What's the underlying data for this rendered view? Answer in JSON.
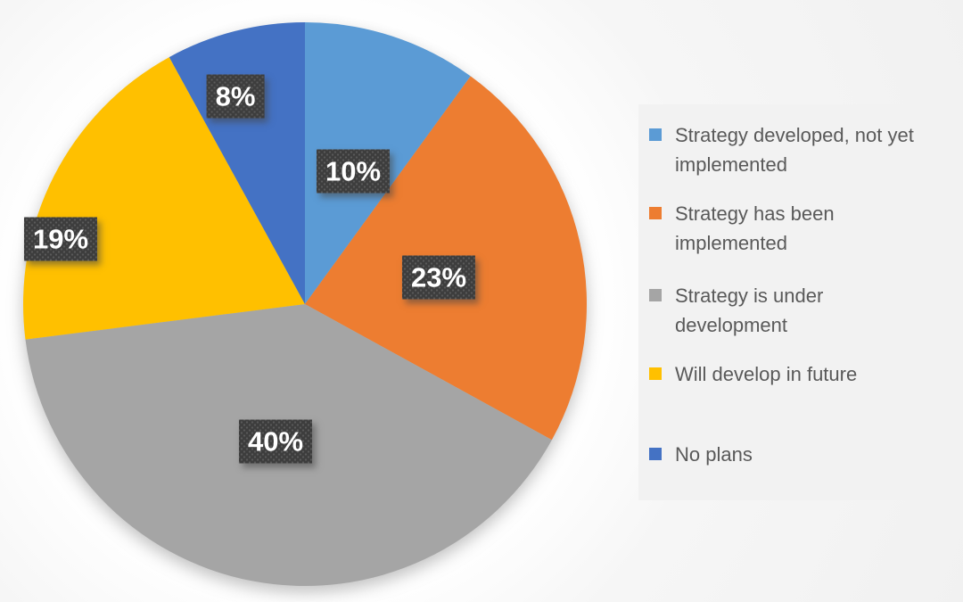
{
  "chart_data": {
    "type": "pie",
    "title": "",
    "categories": [
      "Strategy developed, not yet implemented",
      "Strategy has been implemented",
      "Strategy is under development",
      "Will develop in future",
      "No plans"
    ],
    "values": [
      10,
      23,
      40,
      19,
      8
    ],
    "data_labels": [
      "10%",
      "23%",
      "40%",
      "19%",
      "8%"
    ],
    "colors": [
      "#5B9BD5",
      "#ED7D31",
      "#A5A5A5",
      "#FFC000",
      "#4472C4"
    ],
    "start_angle": "12 o'clock",
    "direction": "clockwise",
    "legend_position": "right",
    "label_style": {
      "background": "#3D3D3D",
      "dot_color": "#5A5A5A",
      "text_color": "#FFFFFF",
      "shadow": "rgba(70,70,70,0.55)"
    }
  },
  "legend": {
    "background": "#F2F2F2",
    "text_color": "#595959",
    "items": [
      {
        "label": "Strategy developed, not yet\nimplemented",
        "color": "#5B9BD5"
      },
      {
        "label": "Strategy has been\nimplemented",
        "color": "#ED7D31"
      },
      {
        "label": "Strategy is under\ndevelopment",
        "color": "#A5A5A5"
      },
      {
        "label": "Will develop in future",
        "color": "#FFC000"
      },
      {
        "label": "No plans",
        "color": "#4472C4"
      }
    ]
  }
}
